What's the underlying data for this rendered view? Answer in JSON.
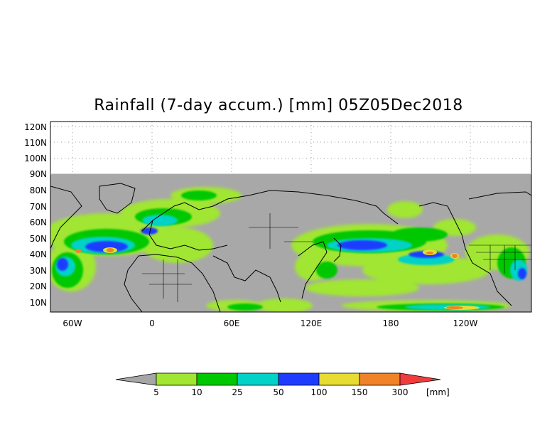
{
  "title": "Rainfall (7-day accum.) [mm] 05Z05Dec2018",
  "y_labels": [
    "120N",
    "110N",
    "100N",
    "90N",
    "80N",
    "70N",
    "60N",
    "50N",
    "40N",
    "30N",
    "20N",
    "10N"
  ],
  "x_labels": [
    "60W",
    "0",
    "60E",
    "120E",
    "180",
    "120W"
  ],
  "colorbar": {
    "unit": "[mm]",
    "labels": [
      "5",
      "10",
      "25",
      "50",
      "100",
      "150",
      "300"
    ],
    "colors": [
      "#a6a6a6",
      "#a0e632",
      "#00c800",
      "#00d2c8",
      "#1e3cff",
      "#e6dc32",
      "#f08228",
      "#f03c3c"
    ]
  },
  "map_colors": {
    "no_rain": "#a8a8a8",
    "background": "#ffffff",
    "coastline": "#000000"
  }
}
